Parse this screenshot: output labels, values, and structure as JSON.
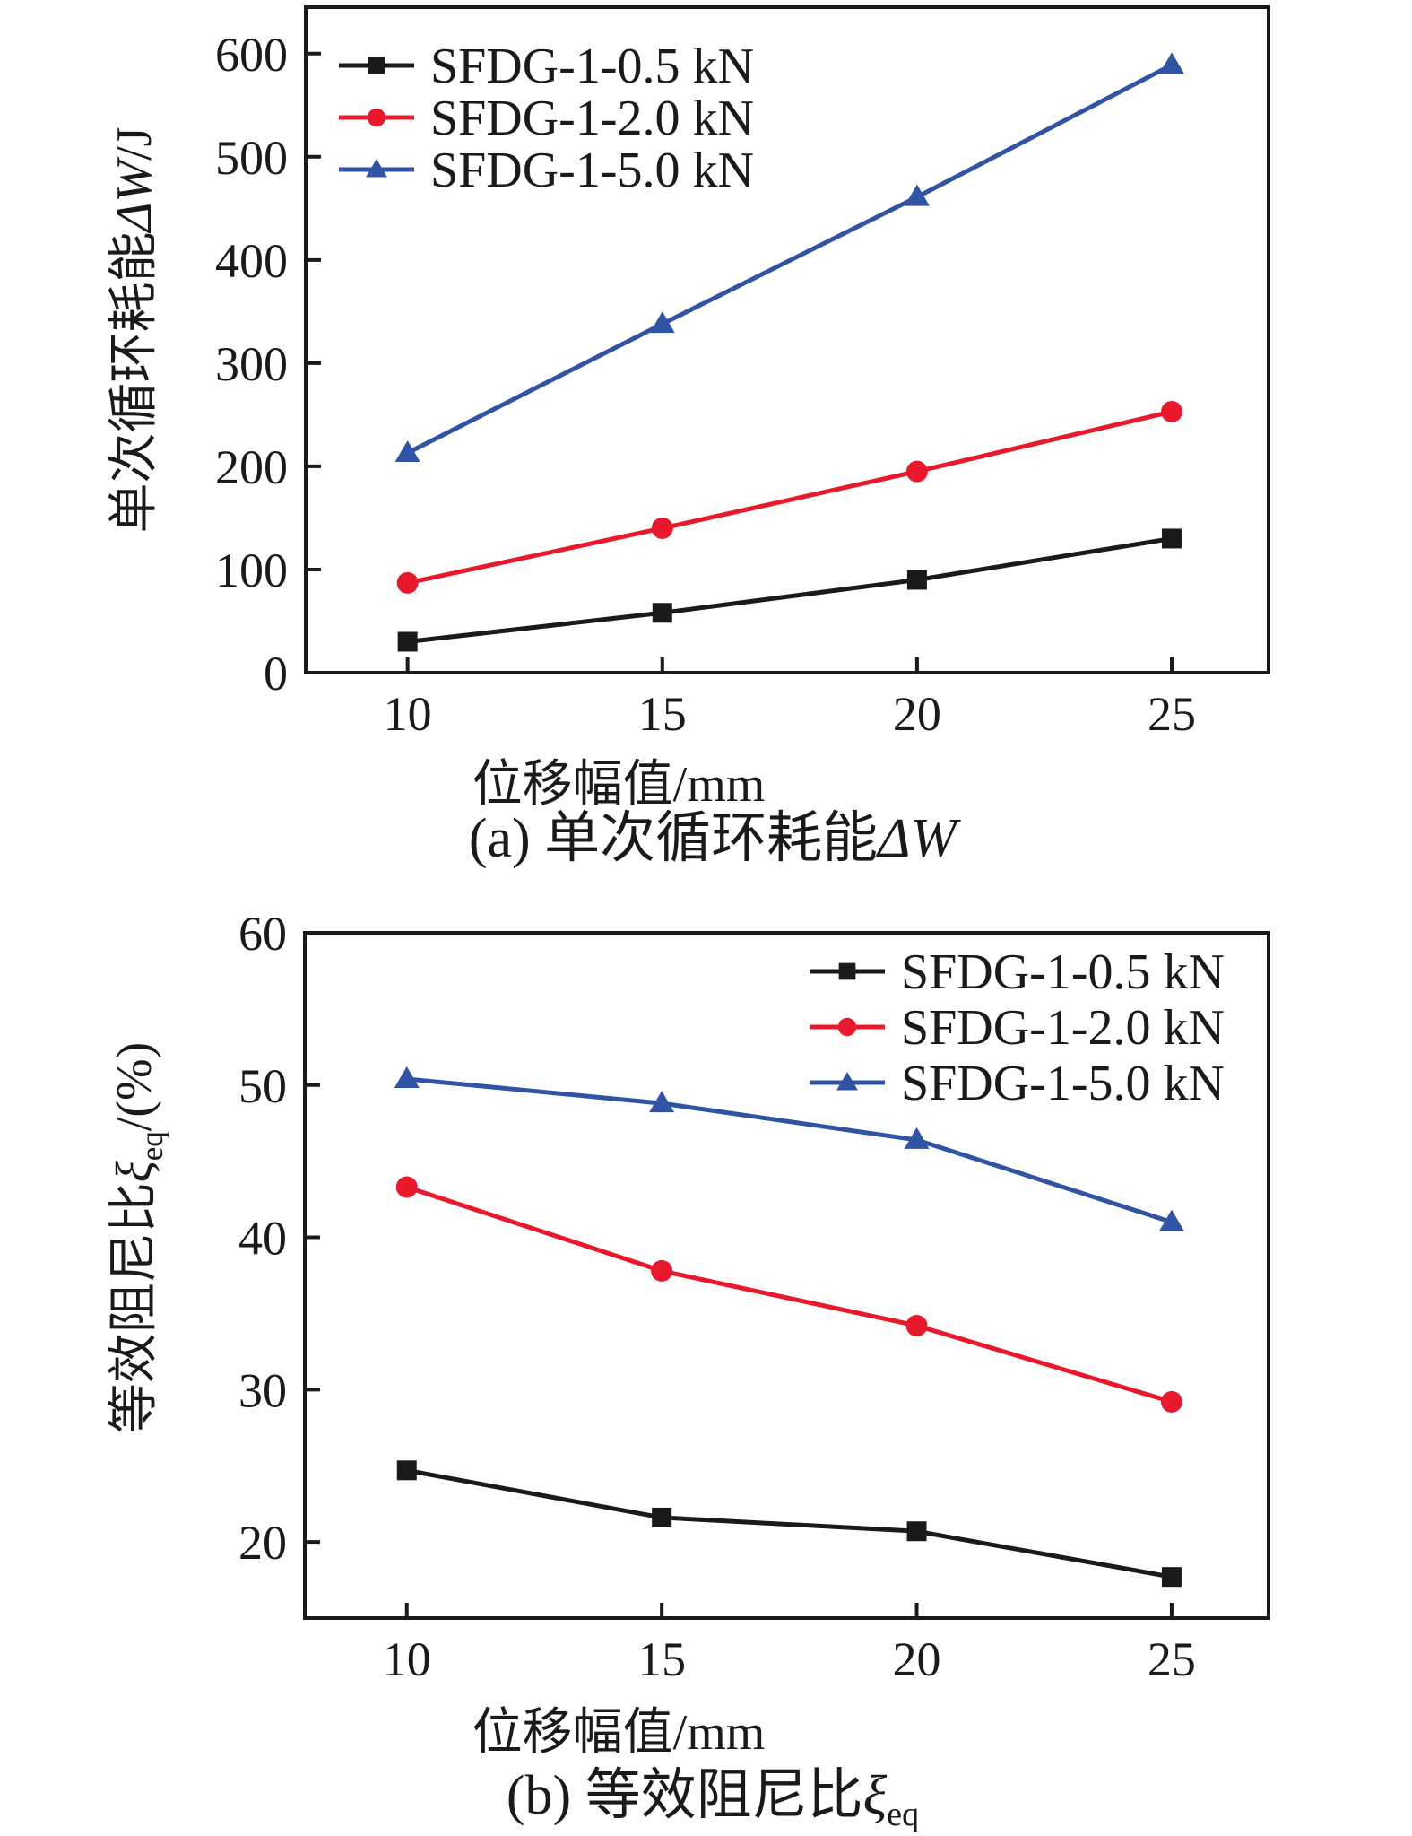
{
  "colors": {
    "axis": "#1a1a1a",
    "black_series": "#1a1a1a",
    "red_series": "#e8192c",
    "blue_series": "#3153a3",
    "background": "#ffffff"
  },
  "chart_data": [
    {
      "id": "a",
      "type": "line",
      "caption": "(a) 单次循环耗能ΔW",
      "caption_segments": [
        {
          "t": "(a) 单次循环耗能"
        },
        {
          "t": "ΔW",
          "i": 1
        }
      ],
      "xlabel": "位移幅值/mm",
      "ylabel": "单次循环耗能ΔW/J",
      "ylabel_segments": [
        {
          "t": "单次循环耗能"
        },
        {
          "t": "ΔW",
          "i": 1
        },
        {
          "t": "/J"
        }
      ],
      "x": [
        10,
        15,
        20,
        25
      ],
      "xticks": [
        "10",
        "15",
        "20",
        "25"
      ],
      "yticks": [
        0,
        100,
        200,
        300,
        400,
        500,
        600
      ],
      "xlim": [
        8,
        26.9
      ],
      "ylim": [
        0,
        645
      ],
      "grid": "off",
      "legend_position": "top-left",
      "series": [
        {
          "name": "SFDG-1-0.5 kN",
          "marker": "square",
          "color": "#1a1a1a",
          "values": [
            30,
            58,
            90,
            130
          ]
        },
        {
          "name": "SFDG-1-2.0 kN",
          "marker": "circle",
          "color": "#e8192c",
          "values": [
            87,
            140,
            195,
            253
          ]
        },
        {
          "name": "SFDG-1-5.0 kN",
          "marker": "triangle",
          "color": "#3153a3",
          "values": [
            213,
            338,
            461,
            589
          ]
        }
      ]
    },
    {
      "id": "b",
      "type": "line",
      "caption": "(b) 等效阻尼比ξeq",
      "caption_segments": [
        {
          "t": "(b) 等效阻尼比"
        },
        {
          "t": "ξ",
          "i": 1
        },
        {
          "t": "eq",
          "sub": 1
        }
      ],
      "xlabel": "位移幅值/mm",
      "ylabel": "等效阻尼比ξeq/(%)",
      "ylabel_segments": [
        {
          "t": "等效阻尼比"
        },
        {
          "t": "ξ",
          "i": 1
        },
        {
          "t": "eq",
          "sub": 1
        },
        {
          "t": "/(%)"
        }
      ],
      "x": [
        10,
        15,
        20,
        25
      ],
      "xticks": [
        "10",
        "15",
        "20",
        "25"
      ],
      "yticks": [
        20,
        30,
        40,
        50,
        60
      ],
      "xlim": [
        8,
        26.9
      ],
      "ylim": [
        15,
        60
      ],
      "grid": "off",
      "legend_position": "top-right",
      "series": [
        {
          "name": "SFDG-1-0.5 kN",
          "marker": "square",
          "color": "#1a1a1a",
          "values": [
            24.7,
            21.6,
            20.7,
            17.7
          ]
        },
        {
          "name": "SFDG-1-2.0 kN",
          "marker": "circle",
          "color": "#e8192c",
          "values": [
            43.3,
            37.8,
            34.2,
            29.2
          ]
        },
        {
          "name": "SFDG-1-5.0 kN",
          "marker": "triangle",
          "color": "#3153a3",
          "values": [
            50.4,
            48.8,
            46.4,
            41.0
          ]
        }
      ]
    }
  ]
}
